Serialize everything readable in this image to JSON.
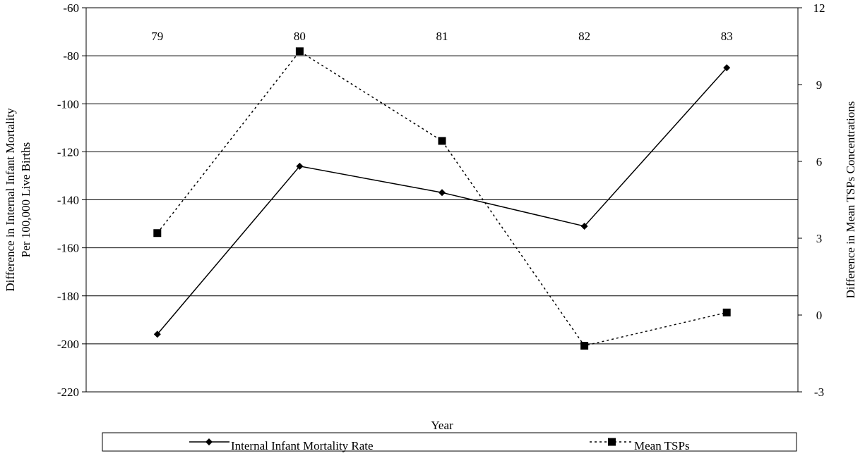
{
  "chart_data": {
    "type": "line",
    "categories": [
      "79",
      "80",
      "81",
      "82",
      "83"
    ],
    "xlabel": "Year",
    "y_left_label": [
      "Difference in Internal Infant Mortality",
      "Per 100,000 Live Births"
    ],
    "y_right_label": "Difference in Mean TSPs Concentrations",
    "y_left_lim": [
      -220,
      -60
    ],
    "y_left_ticks": [
      -60,
      -80,
      -100,
      -120,
      -140,
      -160,
      -180,
      -200,
      -220
    ],
    "y_right_lim": [
      -3,
      12
    ],
    "y_right_ticks": [
      12,
      9,
      6,
      3,
      0,
      -3
    ],
    "grid": true,
    "legend_position": "bottom",
    "series": [
      {
        "name": "Internal Infant Mortality Rate",
        "axis": "left",
        "values": [
          -196,
          -126,
          -137,
          -151,
          -85
        ],
        "line_style": "solid",
        "marker": "diamond",
        "color": "#000000"
      },
      {
        "name": "Mean TSPs",
        "axis": "right",
        "values": [
          3.2,
          10.3,
          6.8,
          -1.2,
          0.1
        ],
        "line_style": "dotted",
        "marker": "square",
        "color": "#000000"
      }
    ]
  }
}
